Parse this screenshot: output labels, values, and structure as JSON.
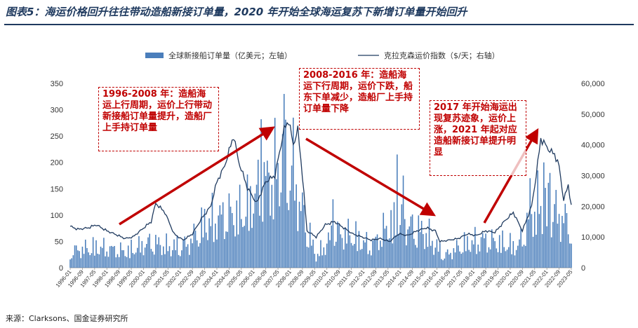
{
  "title": "图表5：海运价格回升往往带动造船新接订单量，2020 年开始全球海运复苏下新增订单量开始回升",
  "source": "来源：Clarksons、国金证券研究所",
  "colors": {
    "bar": "#4a7ebb",
    "line": "#1f3a5f",
    "arrow": "#c00000",
    "annotation": "#c00000"
  },
  "annotations": [
    "1996-2008 年：造船海运上行周期，运价上行带动新接船订单量提升，造船厂上手持订单量",
    "2008-2016 年：造船海运下行周期，运价下跌，船东下单减少，造船厂上手持订单量下降",
    "2017 年开始海运出现复苏迹象，运价上涨，2021 年起对应造船新接订单提升明显"
  ],
  "chart_data": {
    "type": "bar+line",
    "x_start": "1996-01",
    "x_end": "2023-05",
    "x_ticks": [
      "1996-01",
      "1996-09",
      "1997-05",
      "1998-01",
      "1998-09",
      "1999-05",
      "2000-01",
      "2000-09",
      "2001-05",
      "2002-01",
      "2002-09",
      "2003-05",
      "2004-01",
      "2004-09",
      "2005-05",
      "2006-01",
      "2006-09",
      "2007-05",
      "2008-01",
      "2008-09",
      "2009-05",
      "2010-01",
      "2010-09",
      "2011-05",
      "2012-01",
      "2012-09",
      "2013-05",
      "2014-01",
      "2014-09",
      "2015-05",
      "2016-01",
      "2016-09",
      "2017-05",
      "2018-01",
      "2018-09",
      "2019-05",
      "2020-01",
      "2020-09",
      "2021-05",
      "2022-01",
      "2022-09",
      "2023-05"
    ],
    "y_left": {
      "label": "全球新接船订单量（亿美元；左轴）",
      "ticks": [
        0,
        50,
        100,
        150,
        200,
        250,
        300,
        350
      ],
      "range": [
        0,
        350
      ]
    },
    "y_right": {
      "label": "克拉克森运价指数（$/天；右轴）",
      "ticks": [
        "0",
        "10,000",
        "20,000",
        "30,000",
        "40,000",
        "50,000",
        "60,000"
      ],
      "range": [
        0,
        60000
      ]
    },
    "series": [
      {
        "name": "全球新接船订单量（亿美元；左轴）",
        "axis": "left",
        "type": "bar",
        "anchors": [
          [
            "1996-01",
            35
          ],
          [
            "1997-06",
            45
          ],
          [
            "1999-01",
            35
          ],
          [
            "2000-06",
            55
          ],
          [
            "2001-06",
            45
          ],
          [
            "2002-06",
            50
          ],
          [
            "2003-06",
            100
          ],
          [
            "2004-06",
            110
          ],
          [
            "2005-06",
            120
          ],
          [
            "2006-06",
            170
          ],
          [
            "2007-06",
            220
          ],
          [
            "2008-01",
            210
          ],
          [
            "2008-09",
            120
          ],
          [
            "2009-06",
            25
          ],
          [
            "2010-06",
            75
          ],
          [
            "2011-06",
            70
          ],
          [
            "2012-06",
            45
          ],
          [
            "2013-06",
            95
          ],
          [
            "2014-06",
            90
          ],
          [
            "2015-06",
            75
          ],
          [
            "2016-06",
            25
          ],
          [
            "2017-06",
            50
          ],
          [
            "2018-06",
            60
          ],
          [
            "2019-06",
            55
          ],
          [
            "2020-06",
            45
          ],
          [
            "2021-06",
            135
          ],
          [
            "2022-06",
            120
          ],
          [
            "2023-05",
            90
          ]
        ],
        "peaks": [
          [
            "2007-09",
            330
          ],
          [
            "2006-06",
            282
          ],
          [
            "2008-03",
            285
          ],
          [
            "2013-11",
            215
          ],
          [
            "2014-03",
            175
          ],
          [
            "2021-11",
            200
          ],
          [
            "2022-03",
            180
          ],
          [
            "2021-02",
            170
          ],
          [
            "2010-05",
            130
          ]
        ]
      },
      {
        "name": "克拉克森运价指数（$/天；右轴）",
        "axis": "right",
        "type": "line",
        "anchors": [
          [
            "1996-01",
            13500
          ],
          [
            "1996-06",
            12500
          ],
          [
            "1997-01",
            13000
          ],
          [
            "1997-06",
            14000
          ],
          [
            "1998-01",
            12000
          ],
          [
            "1998-06",
            11000
          ],
          [
            "1999-01",
            9500
          ],
          [
            "1999-06",
            10000
          ],
          [
            "2000-06",
            15000
          ],
          [
            "2000-09",
            21000
          ],
          [
            "2001-03",
            18000
          ],
          [
            "2001-09",
            11000
          ],
          [
            "2002-03",
            9000
          ],
          [
            "2002-09",
            11000
          ],
          [
            "2003-03",
            16000
          ],
          [
            "2003-09",
            20000
          ],
          [
            "2004-01",
            28000
          ],
          [
            "2004-06",
            33000
          ],
          [
            "2004-12",
            43000
          ],
          [
            "2005-03",
            35000
          ],
          [
            "2005-09",
            26000
          ],
          [
            "2006-03",
            21000
          ],
          [
            "2006-09",
            28000
          ],
          [
            "2007-03",
            30000
          ],
          [
            "2007-09",
            45000
          ],
          [
            "2007-12",
            48000
          ],
          [
            "2008-03",
            40000
          ],
          [
            "2008-06",
            45000
          ],
          [
            "2008-09",
            30000
          ],
          [
            "2008-12",
            12000
          ],
          [
            "2009-06",
            10000
          ],
          [
            "2009-12",
            14000
          ],
          [
            "2010-06",
            15000
          ],
          [
            "2010-12",
            13000
          ],
          [
            "2011-06",
            11000
          ],
          [
            "2011-12",
            10000
          ],
          [
            "2012-06",
            9000
          ],
          [
            "2012-12",
            9500
          ],
          [
            "2013-06",
            8500
          ],
          [
            "2013-12",
            11000
          ],
          [
            "2014-06",
            10500
          ],
          [
            "2014-12",
            12000
          ],
          [
            "2015-06",
            13000
          ],
          [
            "2015-12",
            12000
          ],
          [
            "2016-03",
            8500
          ],
          [
            "2016-09",
            9000
          ],
          [
            "2017-03",
            9500
          ],
          [
            "2017-09",
            11000
          ],
          [
            "2018-03",
            10500
          ],
          [
            "2018-09",
            12000
          ],
          [
            "2019-03",
            11500
          ],
          [
            "2019-09",
            15000
          ],
          [
            "2020-03",
            18000
          ],
          [
            "2020-09",
            12000
          ],
          [
            "2021-03",
            20000
          ],
          [
            "2021-06",
            30000
          ],
          [
            "2021-09",
            42000
          ],
          [
            "2021-12",
            40000
          ],
          [
            "2022-03",
            38000
          ],
          [
            "2022-06",
            37000
          ],
          [
            "2022-09",
            33000
          ],
          [
            "2022-12",
            22000
          ],
          [
            "2023-03",
            27000
          ],
          [
            "2023-05",
            20000
          ]
        ]
      }
    ]
  }
}
